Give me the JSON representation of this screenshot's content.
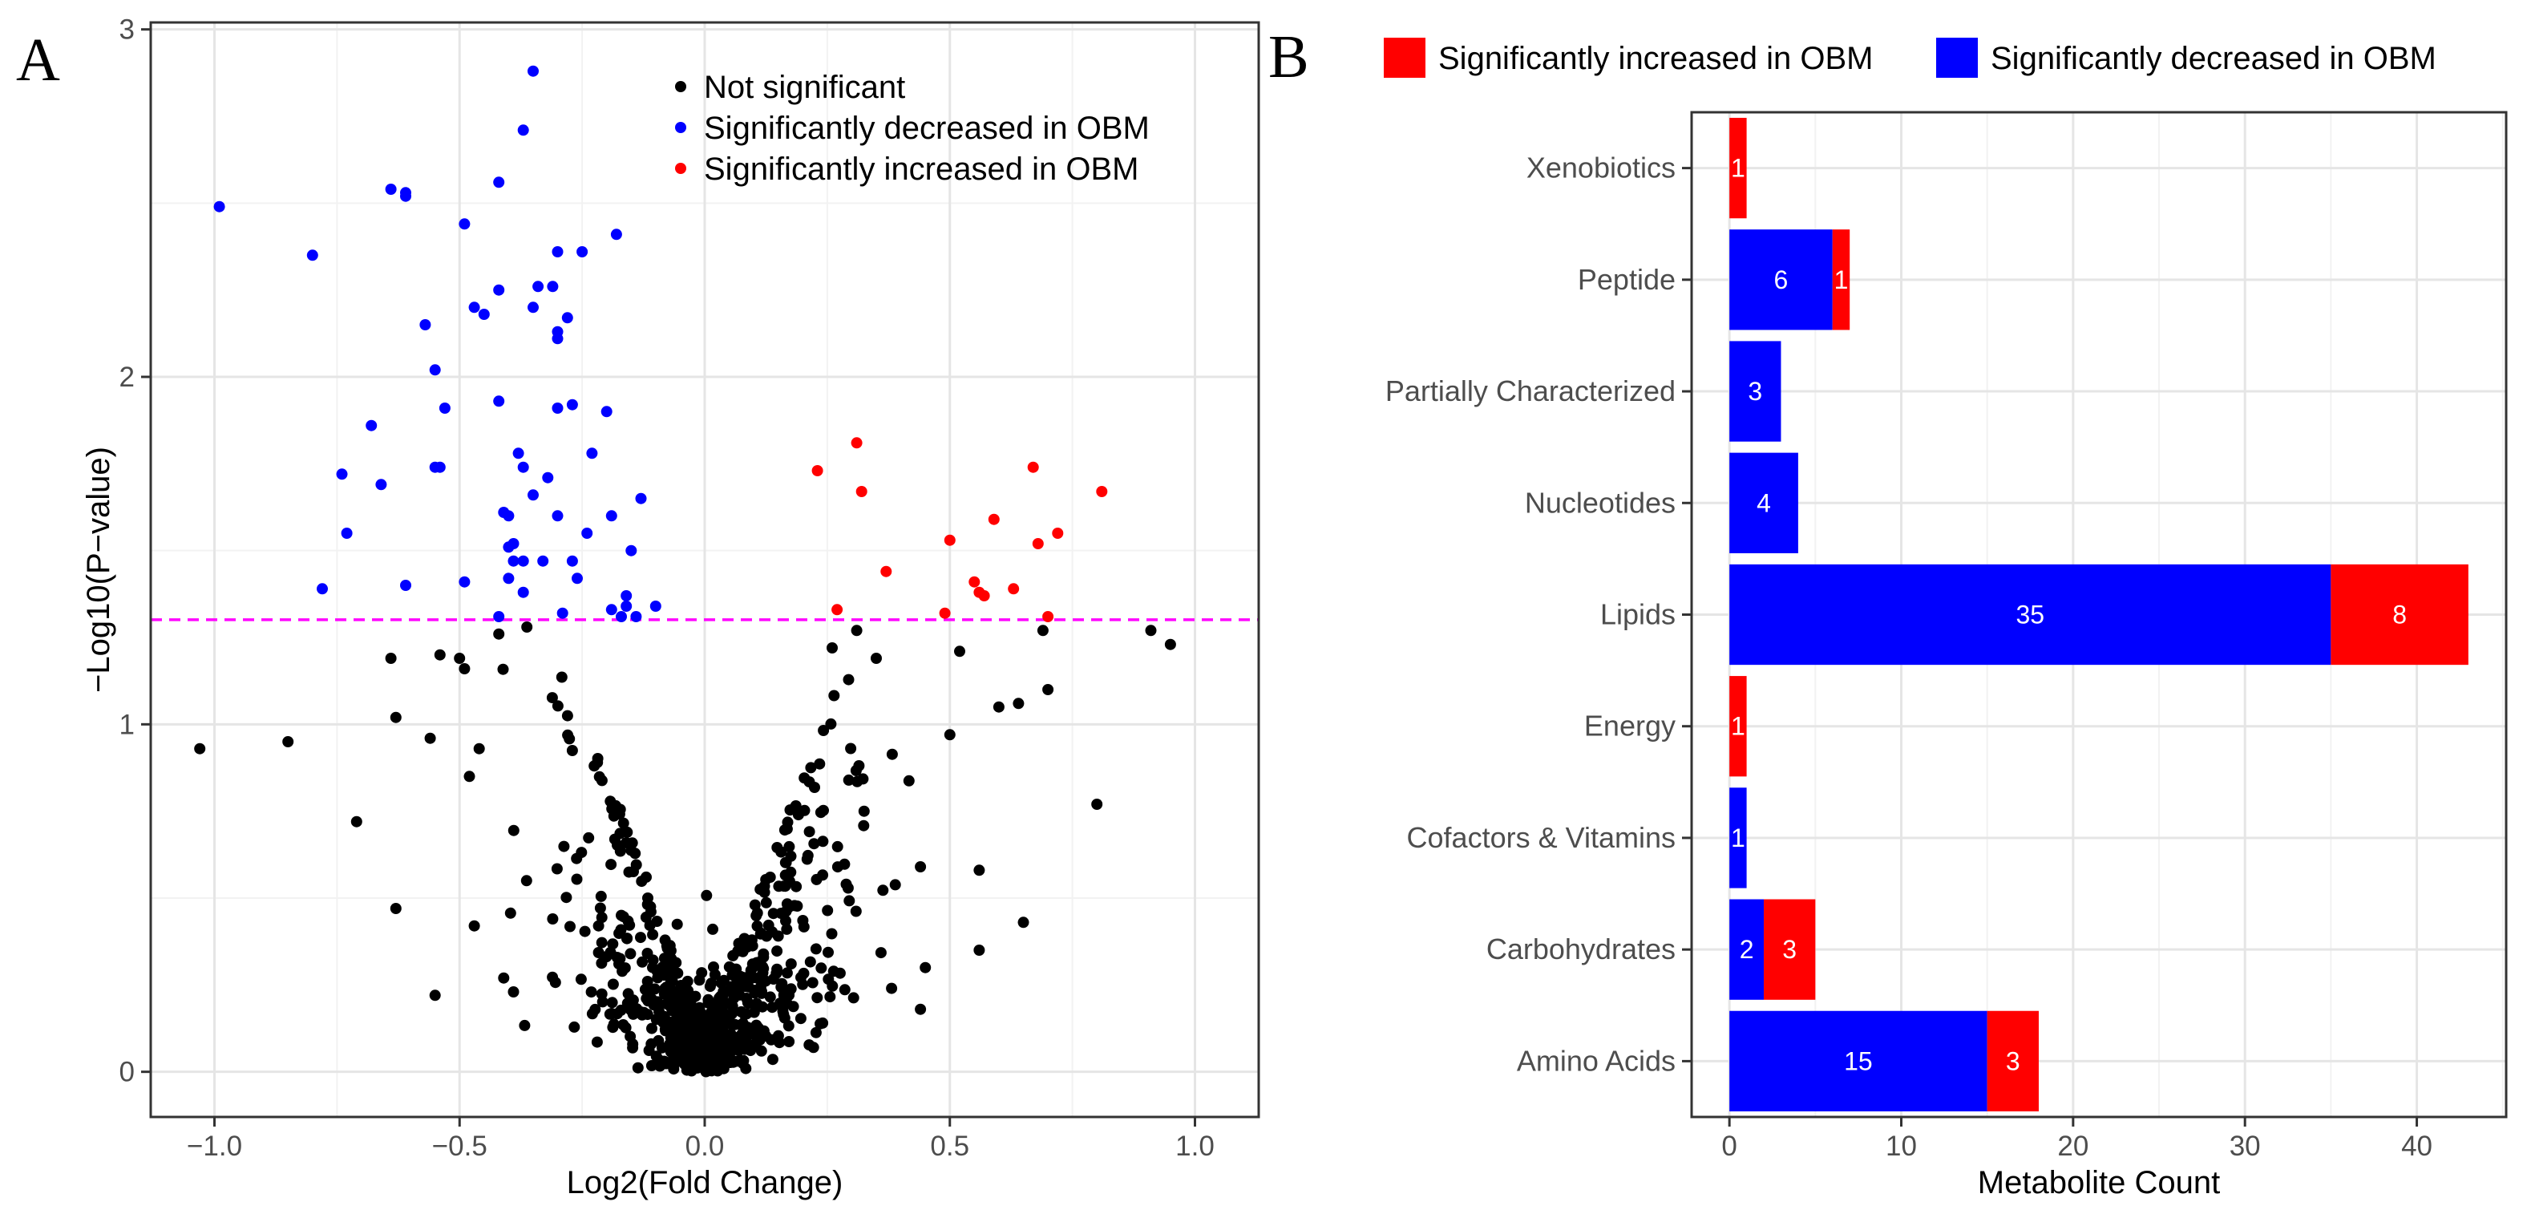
{
  "panel_a": {
    "letter": "A",
    "chart_data": {
      "type": "scatter",
      "title": "",
      "xlabel": "Log2(Fold Change)",
      "ylabel": "−Log10(P−value)",
      "xlim": [
        -1.13,
        1.13
      ],
      "ylim": [
        -0.13,
        3.02
      ],
      "x_ticks": [
        -1.0,
        -0.5,
        0.0,
        0.5,
        1.0
      ],
      "x_tick_labels": [
        "−1.0",
        "−0.5",
        "0.0",
        "0.5",
        "1.0"
      ],
      "y_ticks": [
        0,
        1,
        2,
        3
      ],
      "y_tick_labels": [
        "0",
        "1",
        "2",
        "3"
      ],
      "threshold": {
        "value": 1.301,
        "color": "#ff00ff",
        "style": "dashed"
      },
      "legend_position": "top-right",
      "legend": [
        {
          "label": "Not significant",
          "color": "#000000"
        },
        {
          "label": "Significantly decreased in OBM",
          "color": "#0000ff"
        },
        {
          "label": "Significantly increased in OBM",
          "color": "#ff0000"
        }
      ],
      "series": [
        {
          "name": "Significantly decreased in OBM",
          "color": "#0000ff",
          "points": [
            [
              -0.99,
              2.49
            ],
            [
              -0.8,
              2.35
            ],
            [
              -0.74,
              1.72
            ],
            [
              -0.68,
              1.86
            ],
            [
              -0.66,
              1.69
            ],
            [
              -0.73,
              1.55
            ],
            [
              -0.78,
              1.39
            ],
            [
              -0.64,
              2.54
            ],
            [
              -0.61,
              2.52
            ],
            [
              -0.61,
              2.53
            ],
            [
              -0.57,
              2.15
            ],
            [
              -0.55,
              2.02
            ],
            [
              -0.55,
              1.74
            ],
            [
              -0.54,
              1.74
            ],
            [
              -0.53,
              1.91
            ],
            [
              -0.61,
              1.4
            ],
            [
              -0.49,
              2.44
            ],
            [
              -0.47,
              2.2
            ],
            [
              -0.45,
              2.18
            ],
            [
              -0.42,
              2.56
            ],
            [
              -0.42,
              2.25
            ],
            [
              -0.42,
              1.93
            ],
            [
              -0.41,
              1.61
            ],
            [
              -0.4,
              1.6
            ],
            [
              -0.4,
              1.51
            ],
            [
              -0.39,
              1.52
            ],
            [
              -0.39,
              1.47
            ],
            [
              -0.38,
              1.78
            ],
            [
              -0.37,
              1.74
            ],
            [
              -0.37,
              1.47
            ],
            [
              -0.37,
              2.71
            ],
            [
              -0.35,
              2.88
            ],
            [
              -0.34,
              2.26
            ],
            [
              -0.35,
              2.2
            ],
            [
              -0.31,
              2.26
            ],
            [
              -0.3,
              2.36
            ],
            [
              -0.3,
              2.13
            ],
            [
              -0.3,
              2.11
            ],
            [
              -0.28,
              2.17
            ],
            [
              -0.3,
              1.91
            ],
            [
              -0.27,
              1.92
            ],
            [
              -0.32,
              1.71
            ],
            [
              -0.35,
              1.66
            ],
            [
              -0.37,
              1.38
            ],
            [
              -0.4,
              1.42
            ],
            [
              -0.33,
              1.47
            ],
            [
              -0.3,
              1.6
            ],
            [
              -0.27,
              1.47
            ],
            [
              -0.25,
              2.36
            ],
            [
              -0.23,
              1.78
            ],
            [
              -0.2,
              1.9
            ],
            [
              -0.19,
              1.6
            ],
            [
              -0.18,
              2.41
            ],
            [
              -0.17,
              1.31
            ],
            [
              -0.16,
              1.37
            ],
            [
              -0.16,
              1.34
            ],
            [
              -0.15,
              1.5
            ],
            [
              -0.13,
              1.65
            ],
            [
              -0.1,
              1.34
            ],
            [
              -0.24,
              1.55
            ],
            [
              -0.26,
              1.42
            ],
            [
              -0.49,
              1.41
            ],
            [
              -0.42,
              1.31
            ],
            [
              -0.29,
              1.32
            ],
            [
              -0.19,
              1.33
            ],
            [
              -0.14,
              1.31
            ]
          ]
        },
        {
          "name": "Significantly increased in OBM",
          "color": "#ff0000",
          "points": [
            [
              0.23,
              1.73
            ],
            [
              0.31,
              1.81
            ],
            [
              0.32,
              1.67
            ],
            [
              0.37,
              1.44
            ],
            [
              0.27,
              1.33
            ],
            [
              0.49,
              1.32
            ],
            [
              0.5,
              1.53
            ],
            [
              0.55,
              1.41
            ],
            [
              0.56,
              1.38
            ],
            [
              0.57,
              1.37
            ],
            [
              0.59,
              1.59
            ],
            [
              0.63,
              1.39
            ],
            [
              0.67,
              1.74
            ],
            [
              0.68,
              1.52
            ],
            [
              0.72,
              1.55
            ],
            [
              0.7,
              1.31
            ],
            [
              0.81,
              1.67
            ]
          ]
        },
        {
          "name": "Not significant",
          "color": "#000000",
          "generated": true,
          "points": [
            [
              -1.03,
              0.93
            ],
            [
              -0.85,
              0.95
            ],
            [
              -0.71,
              0.72
            ],
            [
              -0.64,
              1.19
            ],
            [
              -0.63,
              1.02
            ],
            [
              -0.63,
              0.47
            ],
            [
              -0.56,
              0.96
            ],
            [
              -0.55,
              0.22
            ],
            [
              -0.54,
              1.2
            ],
            [
              -0.5,
              1.19
            ],
            [
              -0.49,
              1.16
            ],
            [
              -0.48,
              0.85
            ],
            [
              -0.47,
              0.42
            ],
            [
              -0.46,
              0.93
            ],
            [
              -0.42,
              1.26
            ],
            [
              -0.41,
              0.27
            ],
            [
              -0.39,
              0.23
            ],
            [
              -0.31,
              0.44
            ],
            [
              0.91,
              1.27
            ],
            [
              0.95,
              1.23
            ],
            [
              0.8,
              0.77
            ],
            [
              0.7,
              1.1
            ],
            [
              0.64,
              1.06
            ],
            [
              0.65,
              0.43
            ],
            [
              0.56,
              0.58
            ],
            [
              0.56,
              0.35
            ],
            [
              0.69,
              1.27
            ],
            [
              0.6,
              1.05
            ],
            [
              0.52,
              1.21
            ],
            [
              0.5,
              0.97
            ],
            [
              0.44,
              0.59
            ],
            [
              0.45,
              0.3
            ],
            [
              0.44,
              0.18
            ],
            [
              0.31,
              1.27
            ],
            [
              0.35,
              1.19
            ],
            [
              0.26,
              1.22
            ]
          ]
        }
      ]
    }
  },
  "panel_b": {
    "letter": "B",
    "chart_data": {
      "type": "bar",
      "orientation": "horizontal",
      "stacked": true,
      "title": "",
      "xlabel": "Metabolite Count",
      "ylabel": "",
      "xlim": [
        -2.2,
        45.2
      ],
      "x_ticks": [
        0,
        10,
        20,
        30,
        40
      ],
      "x_tick_labels": [
        "0",
        "10",
        "20",
        "30",
        "40"
      ],
      "legend_position": "top",
      "categories": [
        "Xenobiotics",
        "Peptide",
        "Partially Characterized",
        "Nucleotides",
        "Lipids",
        "Energy",
        "Cofactors & Vitamins",
        "Carbohydrates",
        "Amino Acids"
      ],
      "series": [
        {
          "name": "Significantly decreased in OBM",
          "color": "#0000ff",
          "values": [
            0,
            6,
            3,
            4,
            35,
            0,
            1,
            2,
            15
          ]
        },
        {
          "name": "Significantly increased in OBM",
          "color": "#ff0000",
          "values": [
            1,
            1,
            0,
            0,
            8,
            1,
            0,
            3,
            3
          ]
        }
      ],
      "legend": [
        {
          "label": "Significantly increased in OBM",
          "color": "#ff0000"
        },
        {
          "label": "Significantly decreased in OBM",
          "color": "#0000ff"
        }
      ]
    }
  }
}
